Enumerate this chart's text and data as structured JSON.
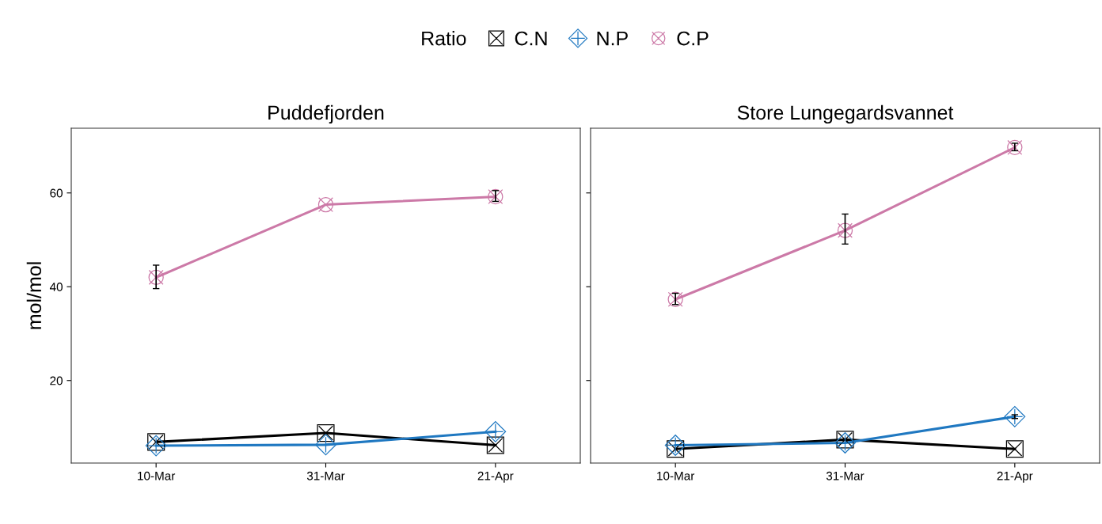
{
  "chart_data": [
    {
      "type": "line",
      "title": "Puddefjorden",
      "ylabel": "mol/mol",
      "legend_title": "Ratio",
      "legend": "top",
      "categories": [
        "10-Mar",
        "31-Mar",
        "21-Apr"
      ],
      "ylim": [
        2.4,
        73.8
      ],
      "yticks": [
        20,
        40,
        60
      ],
      "grid": false,
      "series": [
        {
          "name": "C.N",
          "color": "#000000",
          "marker": "square",
          "values": [
            6.9,
            8.8,
            6.2
          ]
        },
        {
          "name": "N.P",
          "color": "#1f78c1",
          "marker": "diamond",
          "values": [
            6.1,
            6.3,
            9.1
          ]
        },
        {
          "name": "C.P",
          "color": "#cc79a7",
          "marker": "circle",
          "values": [
            42.0,
            57.5,
            59.2
          ],
          "errors": [
            [
              39.6,
              44.6
            ],
            null,
            [
              58.2,
              60.5
            ]
          ]
        }
      ]
    },
    {
      "type": "line",
      "title": "Store Lungegardsvannet",
      "categories": [
        "10-Mar",
        "31-Mar",
        "21-Apr"
      ],
      "ylim": [
        2.4,
        73.8
      ],
      "yticks": [
        20,
        40,
        60
      ],
      "tick_labels": "x",
      "grid": false,
      "series": [
        {
          "name": "C.N",
          "color": "#000000",
          "marker": "square",
          "values": [
            5.4,
            7.4,
            5.4
          ]
        },
        {
          "name": "N.P",
          "color": "#1f78c1",
          "marker": "diamond",
          "values": [
            6.2,
            6.7,
            12.3
          ],
          "errors": [
            null,
            null,
            [
              11.9,
              12.7
            ]
          ]
        },
        {
          "name": "C.P",
          "color": "#cc79a7",
          "marker": "circle",
          "values": [
            37.3,
            52.0,
            69.7
          ],
          "errors": [
            [
              36.2,
              38.6
            ],
            [
              49.1,
              55.5
            ],
            [
              69.0,
              70.6
            ]
          ]
        }
      ]
    }
  ]
}
